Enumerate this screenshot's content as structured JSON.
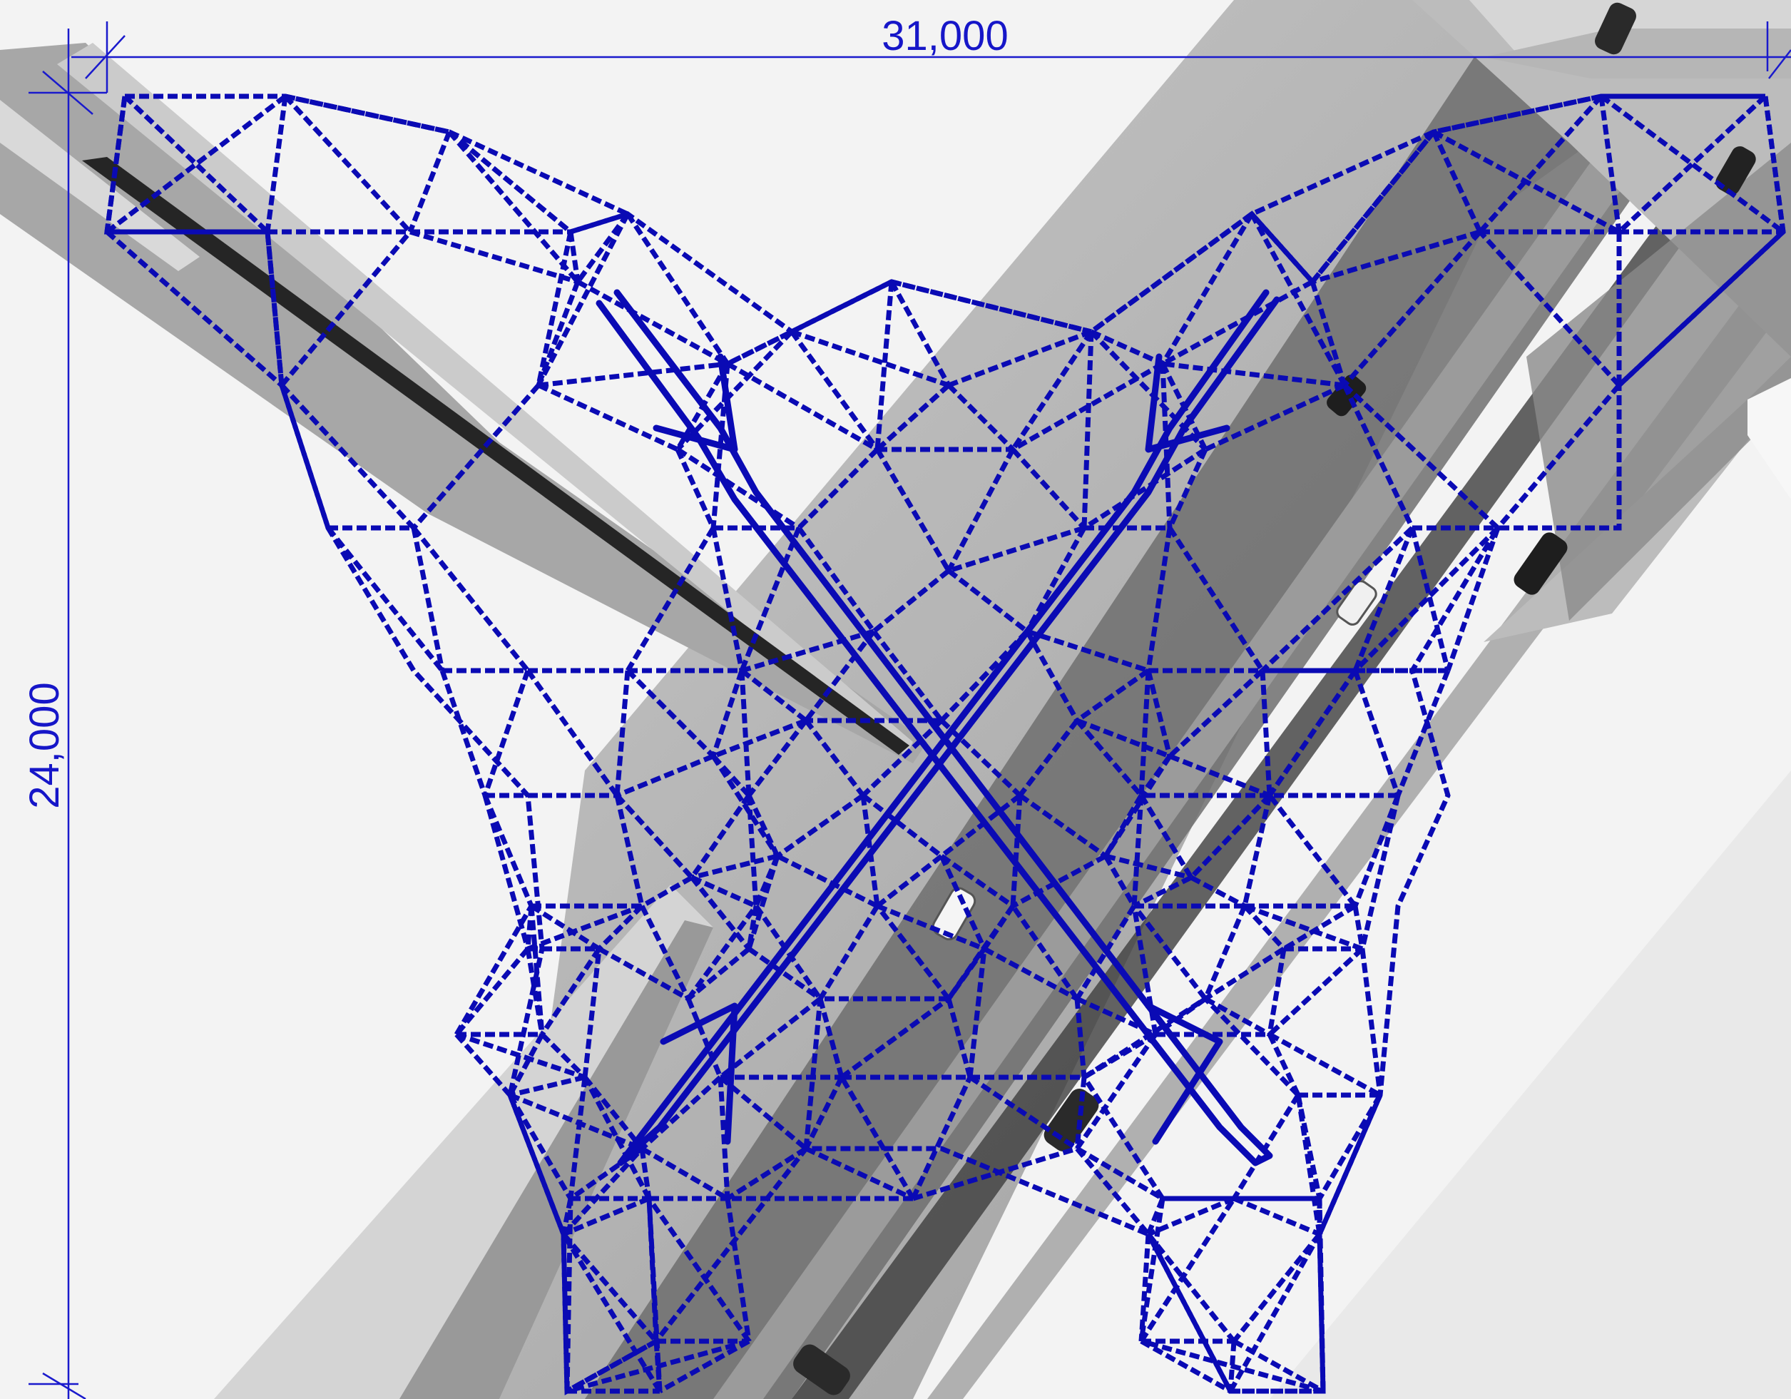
{
  "dimensions": {
    "width_label": "31,000",
    "height_label": "24,000"
  },
  "colors": {
    "dimension_line": "#1a1acc",
    "frame_line": "#0a0ab4",
    "background": "#f4f4f4",
    "road_light": "#b3b3b3",
    "road_mid": "#8f8f8f",
    "road_dark": "#5e5e5e",
    "median": "#2b2b2b"
  },
  "icons": {
    "car": "car-icon"
  }
}
